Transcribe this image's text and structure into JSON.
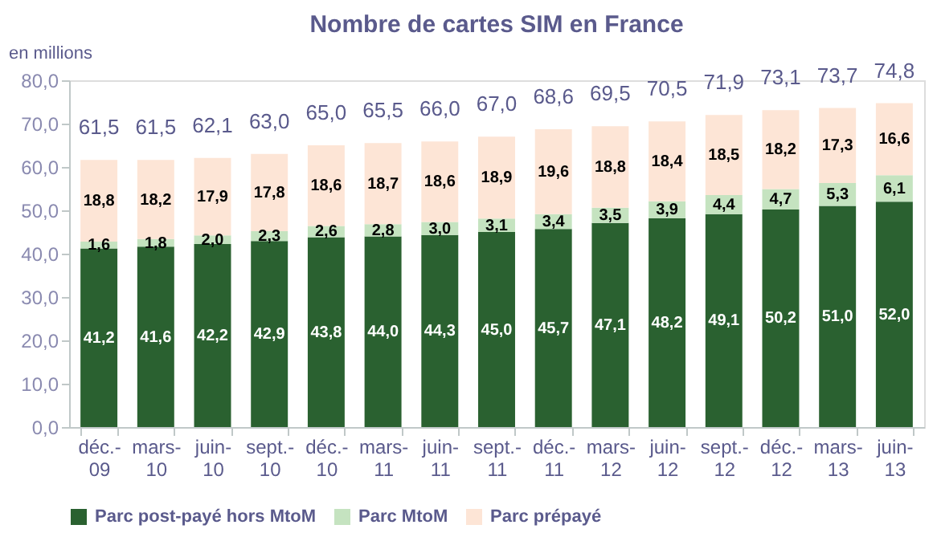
{
  "chart_data": {
    "type": "bar",
    "title": "Nombre de cartes SIM en France",
    "ylabel": "en millions",
    "stacked": true,
    "legend": "bottom",
    "grid": false,
    "categories": [
      "déc.-09",
      "mars-10",
      "juin-10",
      "sept.-10",
      "déc.-10",
      "mars-11",
      "juin-11",
      "sept.-11",
      "déc.-11",
      "mars-12",
      "juin-12",
      "sept.-12",
      "déc.-12",
      "mars-13",
      "juin-13"
    ],
    "ylim": [
      0,
      80
    ],
    "yticks": [
      {
        "value": 0,
        "label": "0,0"
      },
      {
        "value": 10,
        "label": "10,0"
      },
      {
        "value": 20,
        "label": "20,0"
      },
      {
        "value": 30,
        "label": "30,0"
      },
      {
        "value": 40,
        "label": "40,0"
      },
      {
        "value": 50,
        "label": "50,0"
      },
      {
        "value": 60,
        "label": "60,0"
      },
      {
        "value": 70,
        "label": "70,0"
      },
      {
        "value": 80,
        "label": "80,0"
      }
    ],
    "series": [
      {
        "name": "Parc post-payé hors MtoM",
        "color": "#2a6130",
        "values": [
          41.2,
          41.6,
          42.2,
          42.9,
          43.8,
          44.0,
          44.3,
          45.0,
          45.7,
          47.1,
          48.2,
          49.1,
          50.2,
          51.0,
          52.0
        ],
        "value_labels": [
          "41,2",
          "41,6",
          "42,2",
          "42,9",
          "43,8",
          "44,0",
          "44,3",
          "45,0",
          "45,7",
          "47,1",
          "48,2",
          "49,1",
          "50,2",
          "51,0",
          "52,0"
        ]
      },
      {
        "name": "Parc MtoM",
        "color": "#c5e3c0",
        "values": [
          1.6,
          1.8,
          2.0,
          2.3,
          2.6,
          2.8,
          3.0,
          3.1,
          3.4,
          3.5,
          3.9,
          4.4,
          4.7,
          5.3,
          6.1
        ],
        "value_labels": [
          "1,6",
          "1,8",
          "2,0",
          "2,3",
          "2,6",
          "2,8",
          "3,0",
          "3,1",
          "3,4",
          "3,5",
          "3,9",
          "4,4",
          "4,7",
          "5,3",
          "6,1"
        ]
      },
      {
        "name": "Parc prépayé",
        "color": "#fde5d6",
        "values": [
          18.8,
          18.2,
          17.9,
          17.8,
          18.6,
          18.7,
          18.6,
          18.9,
          19.6,
          18.8,
          18.4,
          18.5,
          18.2,
          17.3,
          16.6
        ],
        "value_labels": [
          "18,8",
          "18,2",
          "17,9",
          "17,8",
          "18,6",
          "18,7",
          "18,6",
          "18,9",
          "19,6",
          "18,8",
          "18,4",
          "18,5",
          "18,2",
          "17,3",
          "16,6"
        ]
      }
    ],
    "totals": [
      "61,5",
      "61,5",
      "62,1",
      "63,0",
      "65,0",
      "65,5",
      "66,0",
      "67,0",
      "68,6",
      "69,5",
      "70,5",
      "71,9",
      "73,1",
      "73,7",
      "74,8"
    ]
  }
}
